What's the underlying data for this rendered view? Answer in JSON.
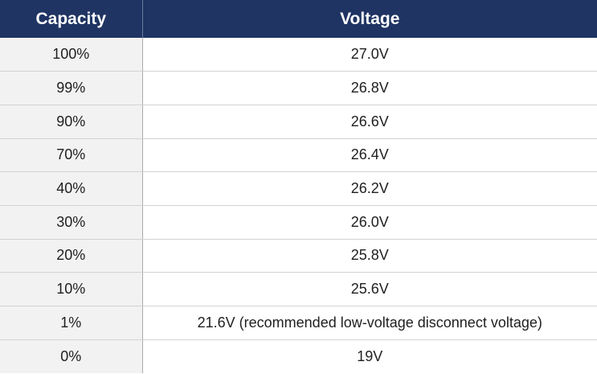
{
  "table": {
    "headers": {
      "capacity": "Capacity",
      "voltage": "Voltage"
    },
    "rows": [
      {
        "capacity": "100%",
        "voltage": "27.0V"
      },
      {
        "capacity": "99%",
        "voltage": "26.8V"
      },
      {
        "capacity": "90%",
        "voltage": "26.6V"
      },
      {
        "capacity": "70%",
        "voltage": "26.4V"
      },
      {
        "capacity": "40%",
        "voltage": "26.2V"
      },
      {
        "capacity": "30%",
        "voltage": "26.0V"
      },
      {
        "capacity": "20%",
        "voltage": "25.8V"
      },
      {
        "capacity": "10%",
        "voltage": "25.6V"
      },
      {
        "capacity": "1%",
        "voltage": "21.6V (recommended low-voltage disconnect voltage)"
      },
      {
        "capacity": "0%",
        "voltage": "19V"
      }
    ]
  },
  "colors": {
    "header_bg": "#1f3463",
    "header_text": "#ffffff",
    "capacity_cell_bg": "#f2f2f2",
    "voltage_cell_bg": "#ffffff"
  }
}
